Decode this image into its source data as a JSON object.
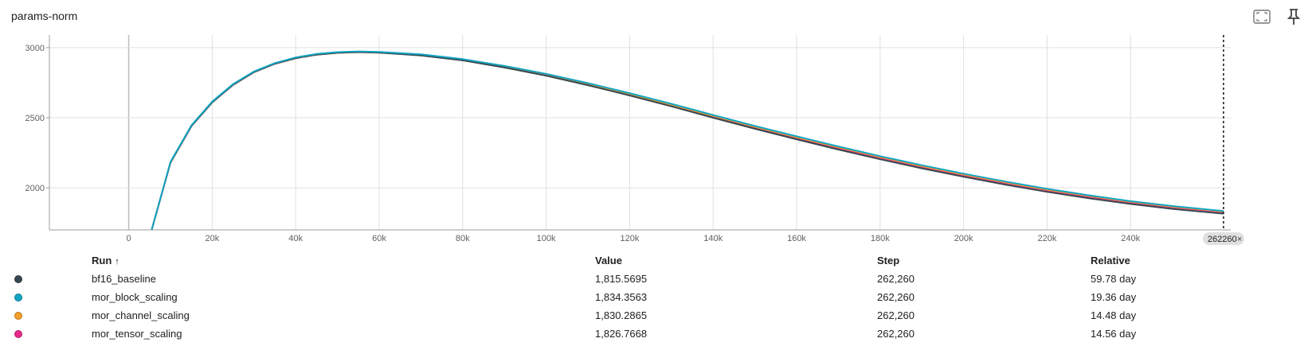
{
  "card": {
    "title": "params-norm",
    "fullscreen_icon": "fullscreen-icon",
    "pin_icon": "pin-icon"
  },
  "chart_data": {
    "type": "line",
    "xlabel": "",
    "ylabel": "",
    "xlim": [
      -19000,
      264000
    ],
    "ylim": [
      1700,
      3090
    ],
    "x_ticks": [
      0,
      20000,
      40000,
      60000,
      80000,
      100000,
      120000,
      140000,
      160000,
      180000,
      200000,
      220000,
      240000
    ],
    "x_tick_labels": [
      "0",
      "20k",
      "40k",
      "60k",
      "80k",
      "100k",
      "120k",
      "140k",
      "160k",
      "180k",
      "200k",
      "220k",
      "240k"
    ],
    "y_ticks": [
      2000,
      2500,
      3000
    ],
    "y_tick_labels": [
      "2000",
      "2500",
      "3000"
    ],
    "grid": true,
    "cursor_step": 262260,
    "cursor_label": "262260",
    "x": [
      5500,
      10000,
      15000,
      20000,
      25000,
      30000,
      35000,
      40000,
      45000,
      50000,
      55000,
      60000,
      70000,
      80000,
      90000,
      100000,
      110000,
      120000,
      130000,
      140000,
      150000,
      160000,
      170000,
      180000,
      190000,
      200000,
      210000,
      220000,
      230000,
      240000,
      250000,
      262260
    ],
    "series": [
      {
        "name": "mor_tensor_scaling",
        "color": "#e7298a",
        "values": [
          1700,
          2180,
          2440,
          2610,
          2735,
          2825,
          2885,
          2925,
          2950,
          2963,
          2968,
          2965,
          2946,
          2912,
          2862,
          2805,
          2738,
          2665,
          2588,
          2508,
          2430,
          2356,
          2284,
          2215,
          2150,
          2090,
          2034,
          1982,
          1937,
          1896,
          1861,
          1826.77
        ]
      },
      {
        "name": "mor_channel_scaling",
        "color": "#f4a02a",
        "values": [
          1700,
          2180,
          2440,
          2610,
          2735,
          2825,
          2885,
          2925,
          2950,
          2963,
          2968,
          2966,
          2948,
          2914,
          2865,
          2808,
          2742,
          2669,
          2593,
          2513,
          2435,
          2361,
          2289,
          2220,
          2155,
          2095,
          2039,
          1987,
          1942,
          1901,
          1866,
          1830.29
        ]
      },
      {
        "name": "bf16_baseline",
        "color": "#37474f",
        "values": [
          1700,
          2180,
          2440,
          2610,
          2735,
          2825,
          2885,
          2925,
          2950,
          2963,
          2968,
          2964,
          2944,
          2909,
          2858,
          2800,
          2732,
          2659,
          2581,
          2500,
          2421,
          2346,
          2273,
          2204,
          2139,
          2079,
          2023,
          1971,
          1926,
          1885,
          1850,
          1815.57
        ]
      },
      {
        "name": "mor_block_scaling",
        "color": "#12a4c2",
        "values": [
          1700,
          2185,
          2445,
          2615,
          2740,
          2830,
          2890,
          2930,
          2955,
          2968,
          2973,
          2970,
          2952,
          2918,
          2870,
          2813,
          2747,
          2675,
          2599,
          2519,
          2441,
          2367,
          2295,
          2226,
          2161,
          2101,
          2045,
          1993,
          1947,
          1905,
          1870,
          1834.36
        ]
      }
    ]
  },
  "table": {
    "headers": {
      "run": "Run",
      "sort_arrow": "↑",
      "value": "Value",
      "step": "Step",
      "relative": "Relative"
    },
    "rows": [
      {
        "run": "bf16_baseline",
        "color": "#37474f",
        "value": "1,815.5695",
        "step": "262,260",
        "relative": "59.78 day"
      },
      {
        "run": "mor_block_scaling",
        "color": "#12a4c2",
        "value": "1,834.3563",
        "step": "262,260",
        "relative": "19.36 day"
      },
      {
        "run": "mor_channel_scaling",
        "color": "#f4a02a",
        "value": "1,830.2865",
        "step": "262,260",
        "relative": "14.48 day"
      },
      {
        "run": "mor_tensor_scaling",
        "color": "#e7298a",
        "value": "1,826.7668",
        "step": "262,260",
        "relative": "14.56 day"
      }
    ]
  }
}
